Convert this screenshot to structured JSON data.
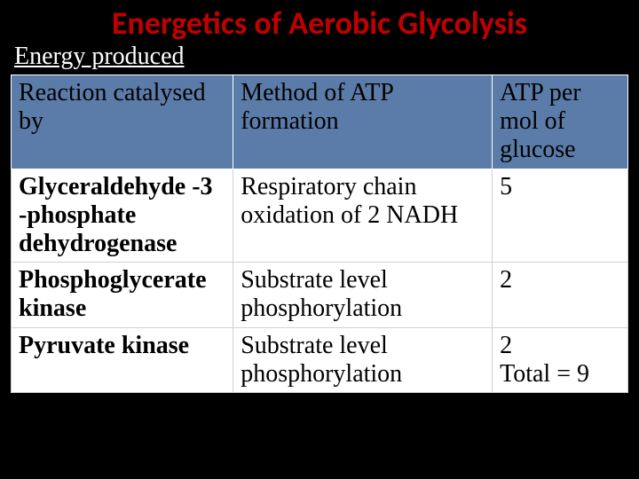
{
  "title": "Energetics of  Aerobic Glycolysis",
  "subtitle": "Energy produced",
  "table": {
    "columns": [
      "Reaction catalysed by",
      "Method  of ATP formation",
      "ATP per mol of glucose"
    ],
    "rows": [
      {
        "reaction": "Glyceraldehyde -3 -phosphate dehydrogenase",
        "method": "Respiratory chain oxidation of 2 NADH",
        "atp": "5"
      },
      {
        "reaction": "Phosphoglycerate kinase",
        "method": "Substrate level phosphorylation",
        "atp": "2"
      },
      {
        "reaction": "Pyruvate kinase",
        "method": "Substrate level phosphorylation",
        "atp": "2\nTotal = 9"
      }
    ],
    "header_bg": "#5b7ca8",
    "body_bg": "#ffffff",
    "title_color": "#c00000",
    "subtitle_color": "#ffffff",
    "page_bg": "#000000"
  }
}
